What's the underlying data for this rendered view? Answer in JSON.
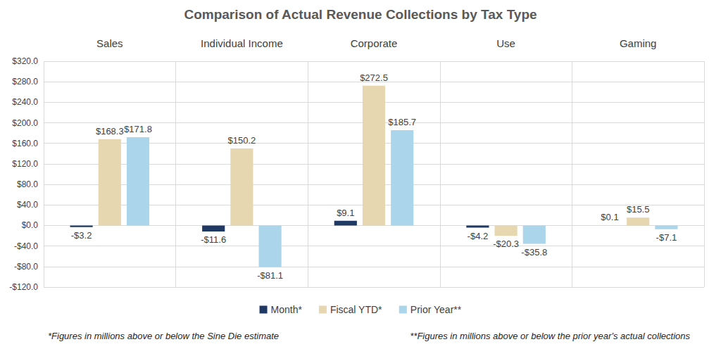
{
  "chart_data": {
    "type": "bar",
    "title": "Comparison of Actual Revenue Collections by Tax Type",
    "categories": [
      "Sales",
      "Individual Income",
      "Corporate",
      "Use",
      "Gaming"
    ],
    "series": [
      {
        "name": "Month*",
        "color": "#1F3864",
        "values": [
          -3.2,
          -11.6,
          9.1,
          -4.2,
          0.1
        ],
        "value_labels": [
          "-$3.2",
          "-$11.6",
          "$9.1",
          "-$4.2",
          "$0.1"
        ]
      },
      {
        "name": "Fiscal YTD*",
        "color": "#E6D7B0",
        "values": [
          168.3,
          150.2,
          272.5,
          -20.3,
          15.5
        ],
        "value_labels": [
          "$168.3",
          "$150.2",
          "$272.5",
          "-$20.3",
          "$15.5"
        ]
      },
      {
        "name": "Prior Year**",
        "color": "#ABD5EA",
        "values": [
          171.8,
          -81.1,
          185.7,
          -35.8,
          -7.1
        ],
        "value_labels": [
          "$171.8",
          "-$81.1",
          "$185.7",
          "-$35.8",
          "-$7.1"
        ]
      }
    ],
    "ylim": [
      -120,
      320
    ],
    "yticks": [
      {
        "value": -120,
        "label": "-$120.0"
      },
      {
        "value": -80,
        "label": "-$80.0"
      },
      {
        "value": -40,
        "label": "-$40.0"
      },
      {
        "value": 0,
        "label": "$0.0"
      },
      {
        "value": 40,
        "label": "$40.0"
      },
      {
        "value": 80,
        "label": "$80.0"
      },
      {
        "value": 120,
        "label": "$120.0"
      },
      {
        "value": 160,
        "label": "$160.0"
      },
      {
        "value": 200,
        "label": "$200.0"
      },
      {
        "value": 240,
        "label": "$240.0"
      },
      {
        "value": 280,
        "label": "$280.0"
      },
      {
        "value": 320,
        "label": "$320.0"
      }
    ],
    "grid": true,
    "legend": "bottom",
    "data_labels": true,
    "annotations": [
      "*Figures in millions above or below the Sine Die estimate",
      "**Figures in millions above or below the prior year's actual collections"
    ]
  }
}
